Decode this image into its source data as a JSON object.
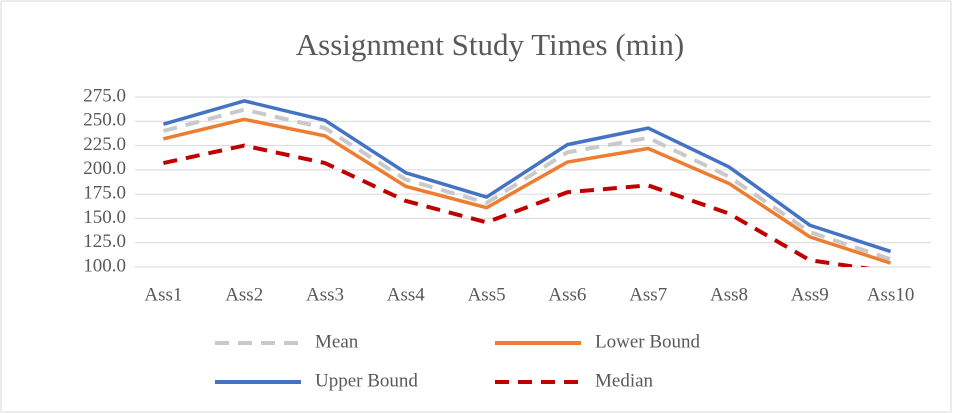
{
  "chart_data": {
    "type": "line",
    "title": "Assignment  Study Times (min)",
    "categories": [
      "Ass1",
      "Ass2",
      "Ass3",
      "Ass4",
      "Ass5",
      "Ass6",
      "Ass7",
      "Ass8",
      "Ass9",
      "Ass10"
    ],
    "series": [
      {
        "name": "Mean",
        "color": "#c9c9c9",
        "dash": true,
        "values": [
          240,
          262,
          243,
          190,
          166,
          218,
          233,
          193,
          136,
          108
        ]
      },
      {
        "name": "Lower Bound",
        "color": "#ed7d31",
        "dash": false,
        "values": [
          232,
          252,
          235,
          183,
          161,
          208,
          222,
          186,
          131,
          104
        ]
      },
      {
        "name": "Upper Bound",
        "color": "#4472c4",
        "dash": false,
        "values": [
          247,
          271,
          251,
          197,
          172,
          226,
          243,
          203,
          143,
          116
        ]
      },
      {
        "name": "Median",
        "color": "#c00000",
        "dash": true,
        "values": [
          207,
          225,
          207,
          168,
          146,
          177,
          184,
          155,
          107,
          95
        ]
      }
    ],
    "ylim": [
      100,
      275
    ],
    "yticks": [
      {
        "value": 100,
        "label": "100.0"
      },
      {
        "value": 125,
        "label": "125.0"
      },
      {
        "value": 150,
        "label": "150.0"
      },
      {
        "value": 175,
        "label": "175.0"
      },
      {
        "value": 200,
        "label": "200.0"
      },
      {
        "value": 225,
        "label": "225.0"
      },
      {
        "value": 250,
        "label": "250.0"
      },
      {
        "value": 275,
        "label": "275.0"
      }
    ],
    "grid": true,
    "legend": "bottom"
  }
}
